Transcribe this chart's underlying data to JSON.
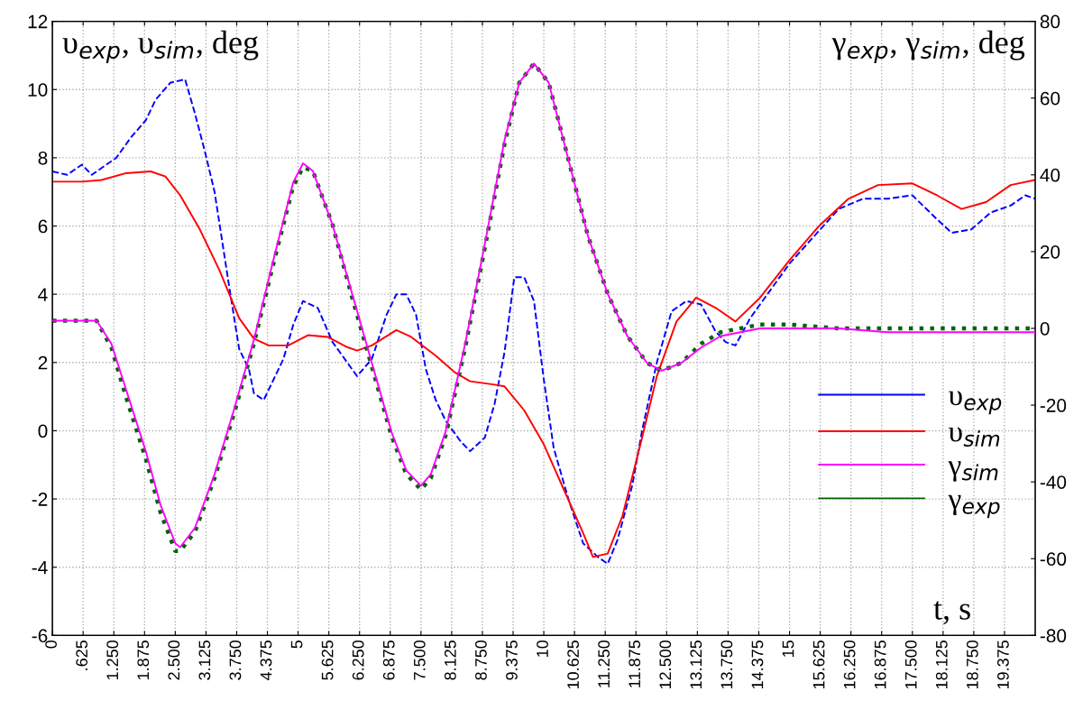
{
  "chart_data": {
    "type": "line",
    "ylabel": "υ$_{exp}$, υ$_{sim}$, deg",
    "y2label": "γ$_{exp}$, γ$_{sim}$, deg",
    "xlabel": "t, s",
    "xlim": [
      0,
      20
    ],
    "ylim": [
      -6,
      12
    ],
    "y2lim": [
      -80,
      80
    ],
    "xticks": [
      0,
      {
        "value": 0.625,
        "label": ".625"
      },
      {
        "value": 1.25,
        "label": "1.250"
      },
      {
        "value": 1.875,
        "label": "1.875"
      },
      {
        "value": 2.5,
        "label": "2.500"
      },
      {
        "value": 3.125,
        "label": "3.125"
      },
      {
        "value": 3.75,
        "label": "3.750"
      },
      {
        "value": 4.375,
        "label": "4.375"
      },
      5,
      {
        "value": 5.625,
        "label": "5.625"
      },
      {
        "value": 6.25,
        "label": "6.250"
      },
      {
        "value": 6.875,
        "label": "6.875"
      },
      {
        "value": 7.5,
        "label": "7.500"
      },
      {
        "value": 8.125,
        "label": "8.125"
      },
      {
        "value": 8.75,
        "label": "8.750"
      },
      {
        "value": 9.375,
        "label": "9.375"
      },
      10,
      {
        "value": 10.625,
        "label": "10.625"
      },
      {
        "value": 11.25,
        "label": "11.250"
      },
      {
        "value": 11.875,
        "label": "11.875"
      },
      {
        "value": 12.5,
        "label": "12.500"
      },
      {
        "value": 13.125,
        "label": "13.125"
      },
      {
        "value": 13.75,
        "label": "13.750"
      },
      {
        "value": 14.375,
        "label": "14.375"
      },
      15,
      {
        "value": 15.625,
        "label": "15.625"
      },
      {
        "value": 16.25,
        "label": "16.250"
      },
      {
        "value": 16.875,
        "label": "16.875"
      },
      {
        "value": 17.5,
        "label": "17.500"
      },
      {
        "value": 18.125,
        "label": "18.125"
      },
      {
        "value": 18.75,
        "label": "18.750"
      },
      {
        "value": 19.375,
        "label": "19.375"
      }
    ],
    "yticks": [
      -6,
      -4,
      -2,
      0,
      2,
      4,
      6,
      8,
      10,
      12
    ],
    "y2ticks": [
      -80,
      -60,
      -40,
      -20,
      0,
      20,
      40,
      60,
      80
    ],
    "grid": true,
    "legend": "right",
    "series": [
      {
        "name": "υ$_{exp}$",
        "color": "#0000ff",
        "line_style": "dashed",
        "x": [
          0,
          0.3,
          0.6,
          0.8,
          1.0,
          1.3,
          1.6,
          1.9,
          2.1,
          2.4,
          2.7,
          2.9,
          3.1,
          3.3,
          3.6,
          3.8,
          4.0,
          4.1,
          4.3,
          4.5,
          4.7,
          4.9,
          5.1,
          5.4,
          5.7,
          6.0,
          6.2,
          6.5,
          6.8,
          7.0,
          7.2,
          7.4,
          7.6,
          7.8,
          8.0,
          8.3,
          8.5,
          8.8,
          9.0,
          9.2,
          9.4,
          9.6,
          9.8,
          10.0,
          10.2,
          10.5,
          10.8,
          11.1,
          11.3,
          11.5,
          11.8,
          12.0,
          12.3,
          12.6,
          12.9,
          13.2,
          13.5,
          13.7,
          13.9,
          14.2,
          14.5,
          15.0,
          15.5,
          16.0,
          16.5,
          17.0,
          17.5,
          18.0,
          18.3,
          18.7,
          19.1,
          19.5,
          19.8,
          20.0
        ],
        "values": [
          7.6,
          7.5,
          7.8,
          7.5,
          7.7,
          8.0,
          8.6,
          9.1,
          9.7,
          10.2,
          10.3,
          9.3,
          8.2,
          7.0,
          4.2,
          2.4,
          1.8,
          1.1,
          0.9,
          1.5,
          2.1,
          3.1,
          3.8,
          3.6,
          2.6,
          2.0,
          1.6,
          2.1,
          3.4,
          4.0,
          4.0,
          3.4,
          1.8,
          0.9,
          0.3,
          -0.3,
          -0.6,
          -0.2,
          0.8,
          2.3,
          4.5,
          4.5,
          3.8,
          1.5,
          -0.5,
          -2.0,
          -3.3,
          -3.7,
          -3.9,
          -3.2,
          -1.6,
          0.0,
          2.0,
          3.5,
          3.8,
          3.7,
          2.9,
          2.6,
          2.5,
          3.3,
          3.9,
          4.9,
          5.7,
          6.5,
          6.8,
          6.8,
          6.9,
          6.2,
          5.8,
          5.9,
          6.4,
          6.6,
          6.9,
          6.8
        ]
      },
      {
        "name": "υ$_{sim}$",
        "color": "#ff0000",
        "line_style": "solid",
        "x": [
          0,
          0.6,
          1.0,
          1.5,
          2.0,
          2.3,
          2.6,
          3.0,
          3.4,
          3.8,
          4.1,
          4.4,
          4.8,
          5.2,
          5.6,
          6.0,
          6.2,
          6.5,
          7.0,
          7.3,
          7.8,
          8.2,
          8.5,
          9.0,
          9.2,
          9.6,
          10.0,
          10.4,
          10.8,
          11.0,
          11.3,
          11.6,
          12.0,
          12.3,
          12.7,
          13.1,
          13.5,
          13.9,
          14.4,
          15.0,
          15.6,
          16.2,
          16.8,
          17.5,
          18.0,
          18.5,
          19.0,
          19.5,
          20.0
        ],
        "values": [
          7.3,
          7.3,
          7.35,
          7.55,
          7.6,
          7.45,
          6.9,
          5.9,
          4.7,
          3.3,
          2.7,
          2.5,
          2.5,
          2.8,
          2.75,
          2.45,
          2.35,
          2.5,
          2.95,
          2.75,
          2.2,
          1.7,
          1.45,
          1.35,
          1.3,
          0.6,
          -0.4,
          -1.7,
          -3.0,
          -3.7,
          -3.6,
          -2.5,
          -0.2,
          1.6,
          3.2,
          3.9,
          3.6,
          3.2,
          3.9,
          5.0,
          6.0,
          6.8,
          7.2,
          7.25,
          6.9,
          6.5,
          6.7,
          7.2,
          7.35
        ]
      },
      {
        "name": "γ$_{sim}$",
        "color": "#ff00ff",
        "line_style": "solid",
        "axis": "y2",
        "x": [
          0,
          0.9,
          1.2,
          1.5,
          1.9,
          2.2,
          2.5,
          2.6,
          2.9,
          3.3,
          3.7,
          4.1,
          4.5,
          4.9,
          5.1,
          5.3,
          5.7,
          6.1,
          6.5,
          6.9,
          7.2,
          7.5,
          7.7,
          8.0,
          8.4,
          8.8,
          9.2,
          9.5,
          9.8,
          10.1,
          10.5,
          10.9,
          11.3,
          11.7,
          12.1,
          12.4,
          12.8,
          13.2,
          13.6,
          14.0,
          14.4,
          15,
          16,
          17,
          18,
          19,
          20
        ],
        "values": [
          2,
          2,
          -4,
          -16,
          -32,
          -46,
          -56,
          -57,
          -52,
          -38,
          -21,
          -3,
          18,
          38,
          43,
          41,
          27,
          9,
          -9,
          -27,
          -37,
          -41,
          -38,
          -27,
          -4,
          22,
          49,
          64,
          69,
          64,
          44,
          24,
          9,
          -2,
          -9,
          -11,
          -9,
          -5,
          -2,
          -1,
          0,
          0,
          0,
          -1,
          -1,
          -1,
          -1
        ]
      },
      {
        "name": "γ$_{exp}$",
        "color": "#006400",
        "line_style": "dotted",
        "axis": "y2",
        "x": [
          0,
          0.9,
          1.2,
          1.5,
          1.9,
          2.2,
          2.5,
          2.6,
          2.9,
          3.3,
          3.7,
          4.1,
          4.5,
          4.9,
          5.1,
          5.3,
          5.7,
          6.1,
          6.5,
          6.9,
          7.2,
          7.5,
          7.7,
          8.0,
          8.4,
          8.8,
          9.2,
          9.5,
          9.8,
          10.1,
          10.5,
          10.9,
          11.3,
          11.7,
          12.1,
          12.4,
          12.8,
          13.2,
          13.6,
          14.0,
          14.4,
          15,
          16,
          17,
          18,
          19,
          20
        ],
        "values": [
          2,
          2,
          -5,
          -18,
          -34,
          -48,
          -58,
          -58,
          -53,
          -39,
          -22,
          -4,
          17,
          37,
          42,
          41,
          27,
          8,
          -10,
          -28,
          -38,
          -42,
          -39,
          -28,
          -5,
          21,
          48,
          64,
          69,
          64,
          44,
          24,
          9,
          -2,
          -9,
          -11,
          -9,
          -4,
          -1,
          0,
          1,
          1,
          0,
          0,
          0,
          0,
          0
        ]
      }
    ]
  }
}
